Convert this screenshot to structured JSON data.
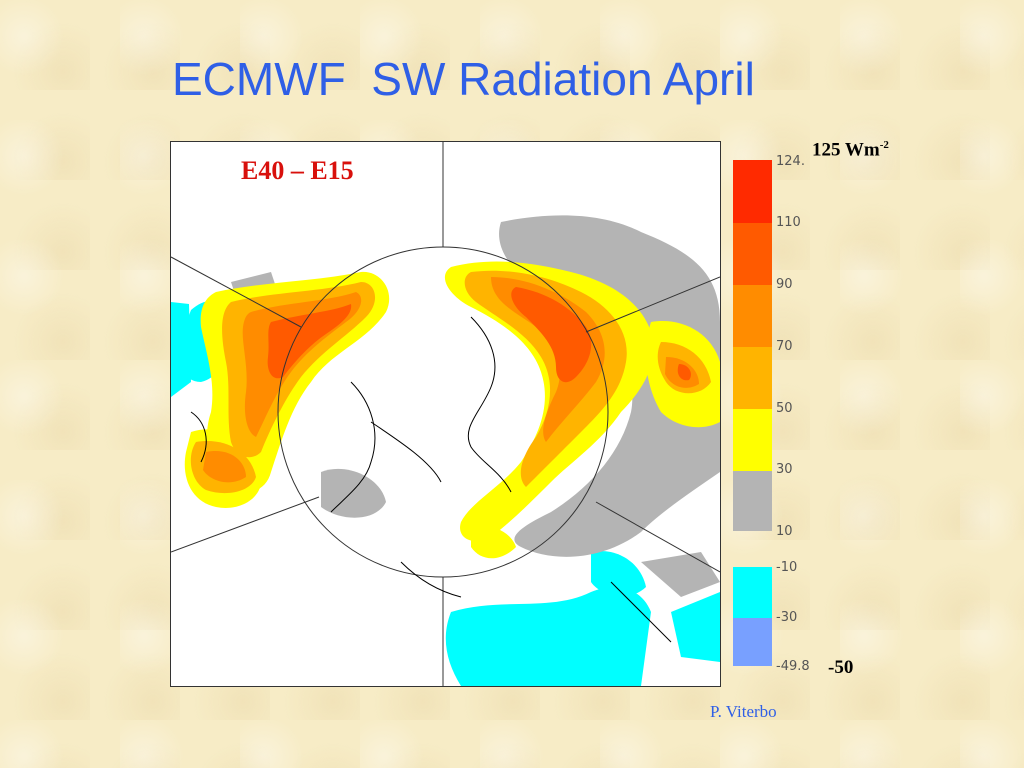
{
  "title": "ECMWF  SW Radiation April",
  "map": {
    "panel_label": "E40 – E15"
  },
  "colorbar": {
    "units_label": "125 Wm",
    "units_exponent": "-2",
    "min_label": "-50",
    "ticks": [
      "124.",
      "110",
      "90",
      "70",
      "50",
      "30",
      "10",
      "-10",
      "-30",
      "-49.8"
    ],
    "colors": {
      "c110_125": "#ff2a00",
      "c90_110": "#ff5a00",
      "c70_90": "#ff8c00",
      "c50_70": "#ffb400",
      "c30_50": "#ffff00",
      "c10_30": "#b4b4b4",
      "cm10_m30": "#00ffff",
      "cm30_m50": "#78a0ff"
    }
  },
  "credit": "P. Viterbo"
}
